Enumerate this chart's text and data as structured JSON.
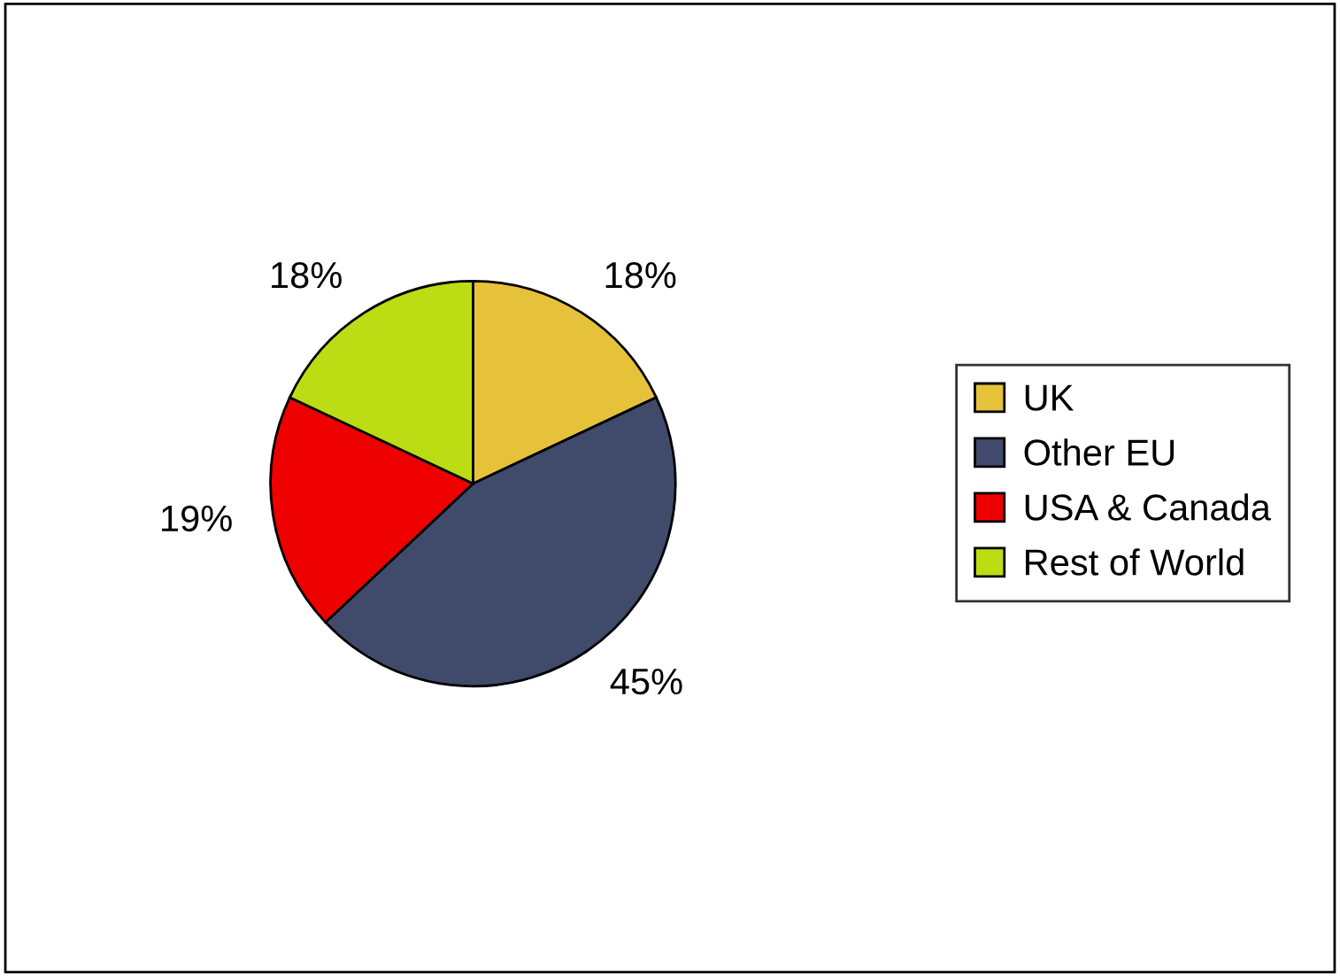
{
  "chart_data": {
    "type": "pie",
    "categories": [
      "UK",
      "Other EU",
      "USA & Canada",
      "Rest of World"
    ],
    "values": [
      18,
      45,
      19,
      18
    ],
    "colors": [
      "#e6c13a",
      "#404a6b",
      "#ee0000",
      "#bcdc14"
    ],
    "value_labels": [
      "18%",
      "45%",
      "19%",
      "18%"
    ],
    "legend": "right"
  }
}
